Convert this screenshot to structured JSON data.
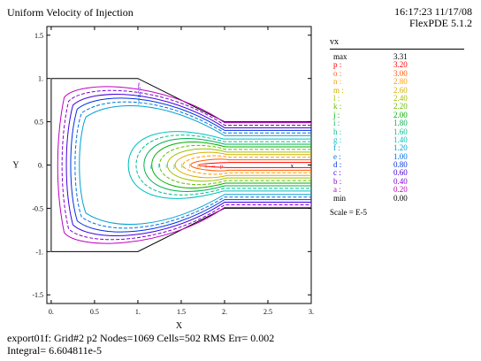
{
  "header": {
    "title": "Uniform Velocity of Injection",
    "time": "16:17:23 11/17/08",
    "version": "FlexPDE 5.1.2"
  },
  "chart_data": {
    "type": "contour",
    "title": "Uniform Velocity of Injection",
    "xlabel": "X",
    "ylabel": "Y",
    "xlim": [
      -0.05,
      3.0
    ],
    "ylim": [
      -1.6,
      1.6
    ],
    "x_ticks": [
      "0.",
      "0.5",
      "1.",
      "1.5",
      "2.",
      "2.5",
      "3."
    ],
    "y_ticks": [
      "1.5",
      "1.",
      "0.5",
      "0.",
      "-0.5",
      "-1.",
      "-1.5"
    ],
    "domain_outline": [
      [
        0,
        1
      ],
      [
        1,
        1
      ],
      [
        2,
        0.5
      ],
      [
        3,
        0.5
      ],
      [
        3,
        -0.5
      ],
      [
        2,
        -0.5
      ],
      [
        1,
        -1
      ],
      [
        0,
        -1
      ]
    ],
    "variable": "vx",
    "max": "3.31",
    "min": "0.00",
    "scale": "Scale = E-5",
    "levels": [
      {
        "label": "p :",
        "value": "3.20",
        "color": "#ff0000"
      },
      {
        "label": "o :",
        "value": "3.00",
        "color": "#ff5a00"
      },
      {
        "label": "n :",
        "value": "2.80",
        "color": "#ff9900"
      },
      {
        "label": "m :",
        "value": "2.60",
        "color": "#d4b000"
      },
      {
        "label": "l :",
        "value": "2.40",
        "color": "#a0c000"
      },
      {
        "label": "k :",
        "value": "2.20",
        "color": "#60c000"
      },
      {
        "label": "j :",
        "value": "2.00",
        "color": "#00b000"
      },
      {
        "label": "i :",
        "value": "1.80",
        "color": "#00b050"
      },
      {
        "label": "h :",
        "value": "1.60",
        "color": "#00c090"
      },
      {
        "label": "g :",
        "value": "1.40",
        "color": "#00c0c0"
      },
      {
        "label": "f :",
        "value": "1.20",
        "color": "#00a0d0"
      },
      {
        "label": "e :",
        "value": "1.00",
        "color": "#0070e0"
      },
      {
        "label": "d :",
        "value": "0.80",
        "color": "#0030e0"
      },
      {
        "label": "c :",
        "value": "0.60",
        "color": "#4000e0"
      },
      {
        "label": "b :",
        "value": "0.40",
        "color": "#8000d0"
      },
      {
        "label": "a :",
        "value": "0.20",
        "color": "#c000c0"
      }
    ]
  },
  "legend": {
    "var_name": "vx",
    "max_label": "max",
    "max_value": "3.31",
    "min_label": "min",
    "min_value": "0.00",
    "scale": "Scale = E-5"
  },
  "footer": {
    "line1": "export01f:  Grid#2  p2  Nodes=1069 Cells=502 RMS Err= 0.002",
    "line2": "Integral=   6.604811e-5"
  }
}
